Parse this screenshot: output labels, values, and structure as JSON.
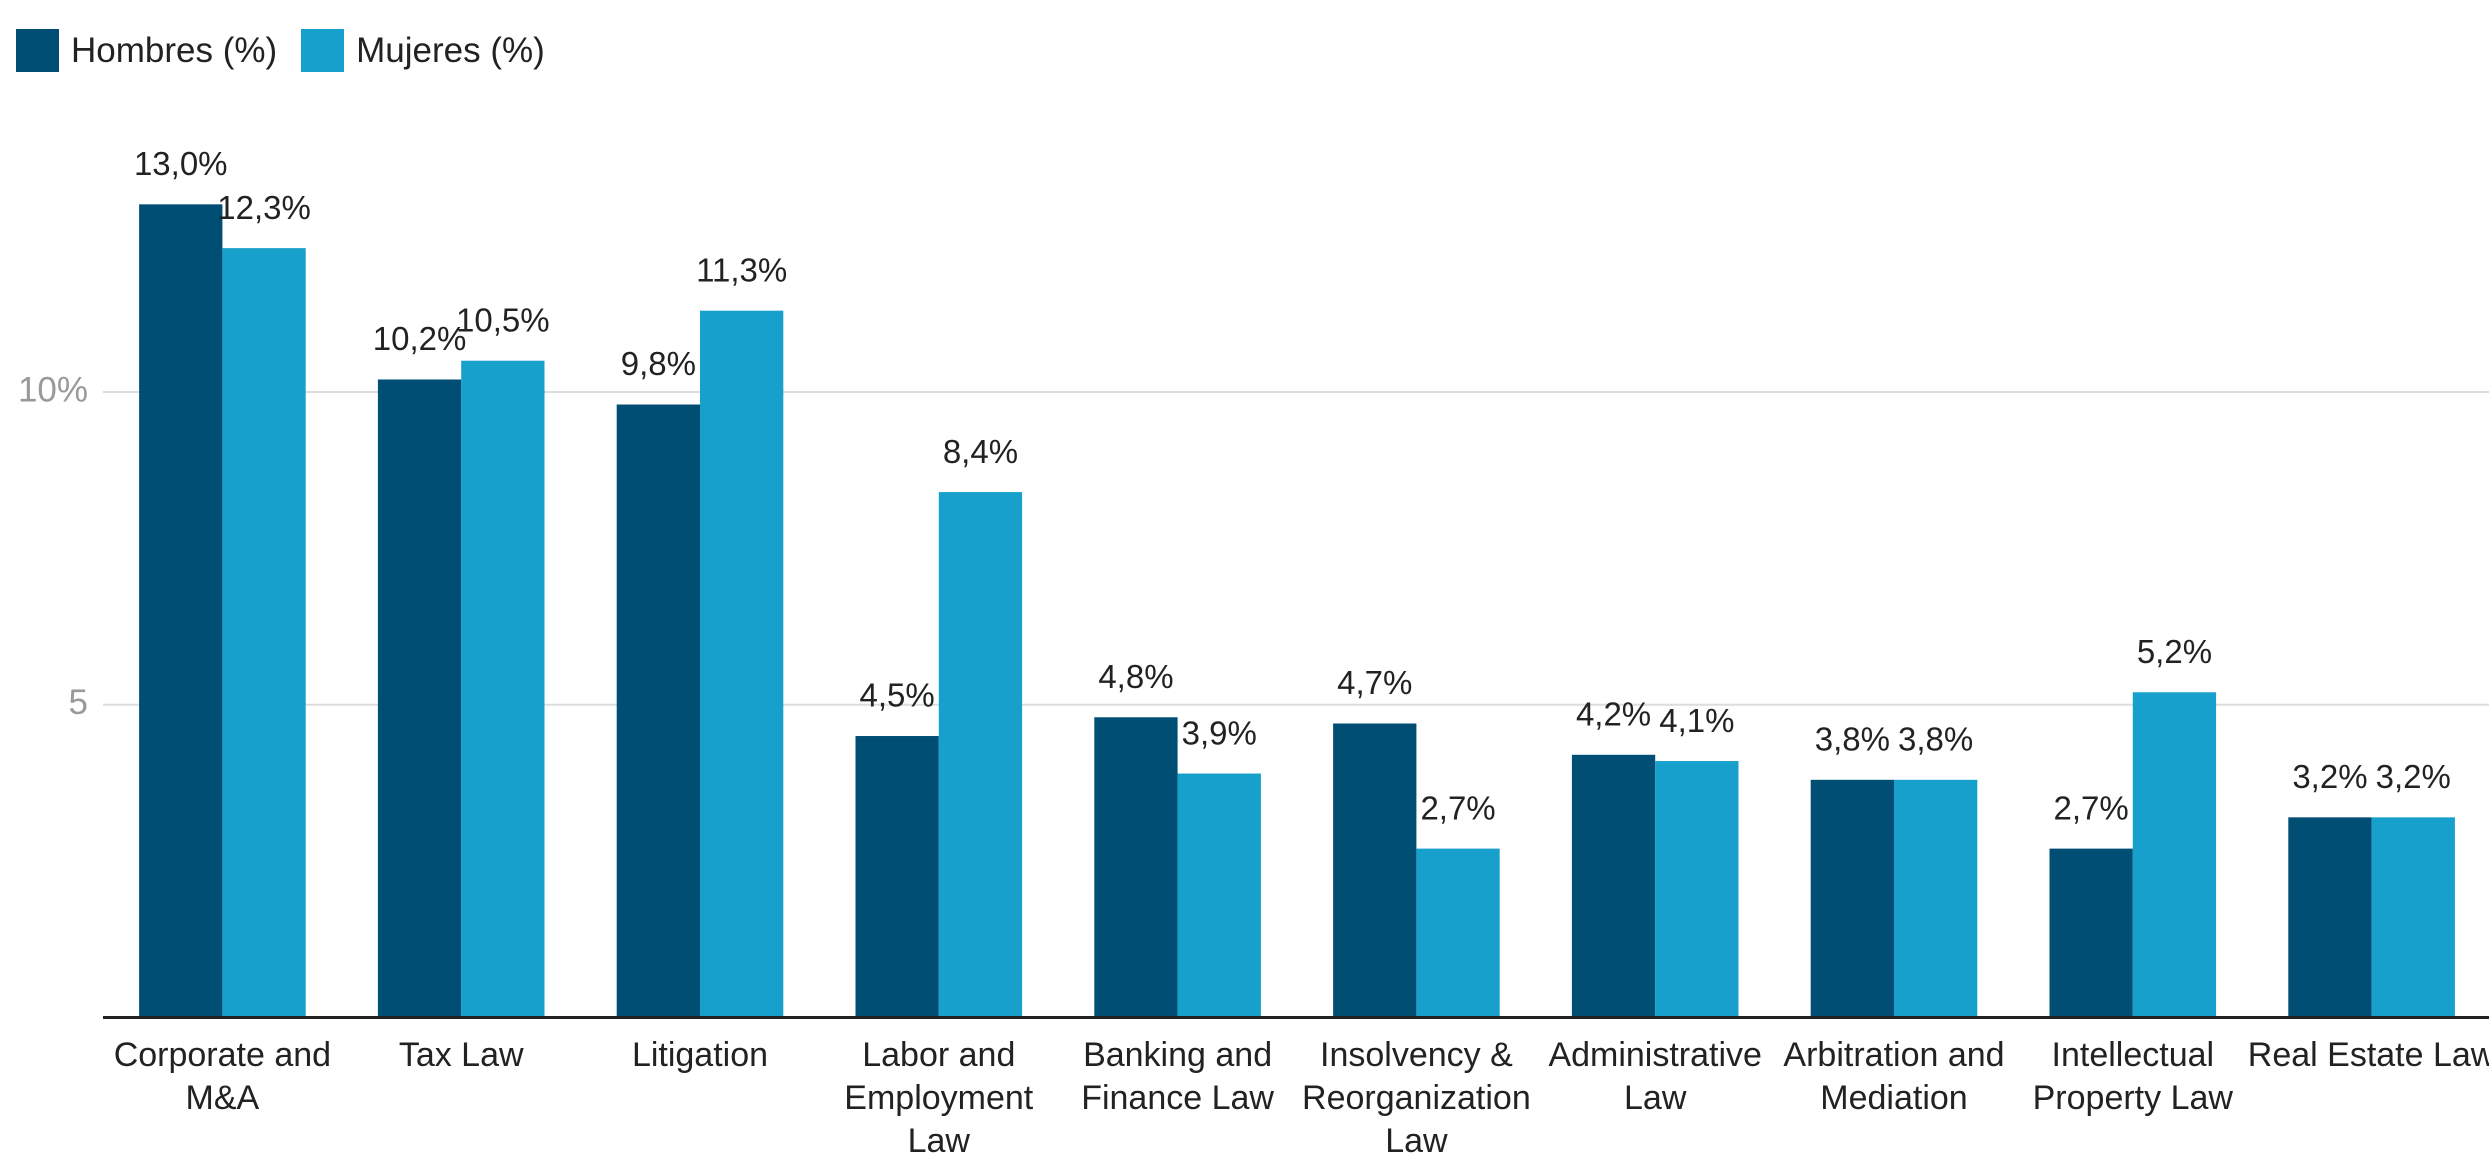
{
  "chart_data": {
    "type": "bar",
    "categories": [
      "Corporate and M&A",
      "Tax Law",
      "Litigation",
      "Labor and Employment Law",
      "Banking and Finance Law",
      "Insolvency & Reorganization Law",
      "Administrative Law",
      "Arbitration and Mediation",
      "Intellectual Property Law",
      "Real Estate Law"
    ],
    "series": [
      {
        "name": "Hombres (%)",
        "color": "#004e74",
        "values": [
          13.0,
          10.2,
          9.8,
          4.5,
          4.8,
          4.7,
          4.2,
          3.8,
          2.7,
          3.2
        ],
        "value_labels": [
          "13,0%",
          "10,2%",
          "9,8%",
          "4,5%",
          "4,8%",
          "4,7%",
          "4,2%",
          "3,8%",
          "2,7%",
          "3,2%"
        ]
      },
      {
        "name": "Mujeres (%)",
        "color": "#18a0cc",
        "values": [
          12.3,
          10.5,
          11.3,
          8.4,
          3.9,
          2.7,
          4.1,
          3.8,
          5.2,
          3.2
        ],
        "value_labels": [
          "12,3%",
          "10,5%",
          "11,3%",
          "8,4%",
          "3,9%",
          "2,7%",
          "4,1%",
          "3,8%",
          "5,2%",
          "3,2%"
        ]
      }
    ],
    "ylim": [
      0,
      16
    ],
    "yticks": [
      5,
      {
        "value": 10,
        "label": "10%"
      }
    ],
    "grid": true,
    "legend": "top-left"
  }
}
